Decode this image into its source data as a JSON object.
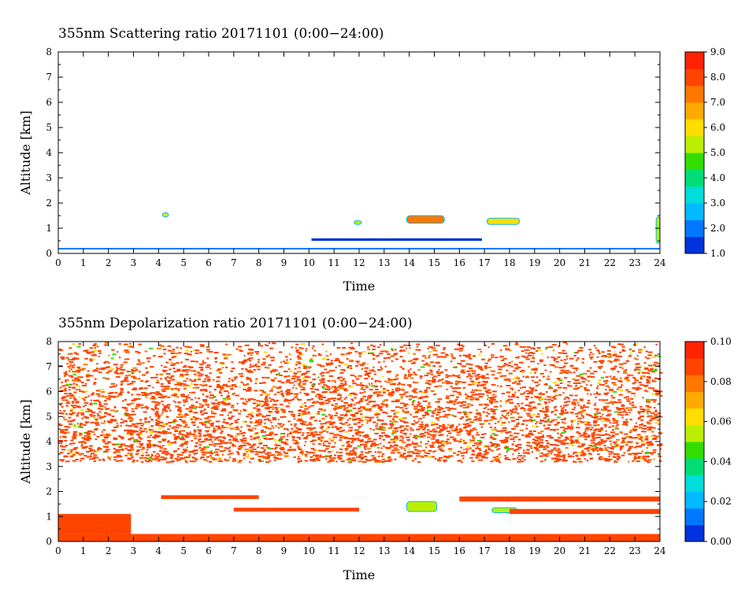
{
  "chart_data": [
    {
      "type": "heatmap",
      "title": "355nm Scattering ratio  20171101 (0:00−24:00)",
      "xlabel": "Time",
      "ylabel": "Altitude [km]",
      "xlim": [
        0,
        24
      ],
      "ylim": [
        0,
        8
      ],
      "x_ticks": [
        "0",
        "1",
        "2",
        "3",
        "4",
        "5",
        "6",
        "7",
        "8",
        "9",
        "10",
        "11",
        "12",
        "13",
        "14",
        "15",
        "16",
        "17",
        "18",
        "19",
        "20",
        "21",
        "22",
        "23",
        "24"
      ],
      "y_ticks": [
        "0",
        "1",
        "2",
        "3",
        "4",
        "5",
        "6",
        "7",
        "8"
      ],
      "colorbar": {
        "range": [
          1.0,
          9.0
        ],
        "tick_labels": [
          "1.0",
          "2.0",
          "3.0",
          "4.0",
          "5.0",
          "6.0",
          "7.0",
          "8.0",
          "9.0"
        ],
        "colors": [
          "#0033dd",
          "#0077ff",
          "#00bbff",
          "#00dddd",
          "#00dd77",
          "#33dd00",
          "#bbee00",
          "#ffdd00",
          "#ffaa00",
          "#ff7700",
          "#ff4400",
          "#ff2200"
        ]
      },
      "features": [
        {
          "kind": "layer",
          "time": [
            0,
            24
          ],
          "altitude": [
            0.18,
            0.22
          ],
          "value": 2.0
        },
        {
          "kind": "layer",
          "time": [
            10.1,
            13.0
          ],
          "altitude": [
            0.5,
            0.6
          ],
          "value": 1.5
        },
        {
          "kind": "layer",
          "time": [
            13.0,
            16.9
          ],
          "altitude": [
            0.5,
            0.6
          ],
          "value": 1.5
        },
        {
          "kind": "cloud",
          "time": [
            4.15,
            4.4
          ],
          "altitude": [
            1.45,
            1.62
          ],
          "value": 6.0
        },
        {
          "kind": "cloud",
          "time": [
            11.8,
            12.1
          ],
          "altitude": [
            1.15,
            1.3
          ],
          "value": 5.0
        },
        {
          "kind": "cloud",
          "time": [
            13.9,
            15.4
          ],
          "altitude": [
            1.2,
            1.5
          ],
          "value": 7.0
        },
        {
          "kind": "cloud",
          "time": [
            17.1,
            18.4
          ],
          "altitude": [
            1.15,
            1.4
          ],
          "value": 6.0
        },
        {
          "kind": "cloud",
          "time": [
            23.85,
            24
          ],
          "altitude": [
            0.4,
            1.45
          ],
          "value": 5.0
        }
      ]
    },
    {
      "type": "heatmap",
      "title": "355nm Depolarization ratio  20171101 (0:00−24:00)",
      "xlabel": "Time",
      "ylabel": "Altitude [km]",
      "xlim": [
        0,
        24
      ],
      "ylim": [
        0,
        8
      ],
      "x_ticks": [
        "0",
        "1",
        "2",
        "3",
        "4",
        "5",
        "6",
        "7",
        "8",
        "9",
        "10",
        "11",
        "12",
        "13",
        "14",
        "15",
        "16",
        "17",
        "18",
        "19",
        "20",
        "21",
        "22",
        "23",
        "24"
      ],
      "y_ticks": [
        "0",
        "1",
        "2",
        "3",
        "4",
        "5",
        "6",
        "7",
        "8"
      ],
      "colorbar": {
        "range": [
          0.0,
          0.1
        ],
        "tick_labels": [
          "0.00",
          "0.02",
          "0.04",
          "0.06",
          "0.08",
          "0.10"
        ],
        "colors": [
          "#0033dd",
          "#0077ff",
          "#00bbff",
          "#00dddd",
          "#00dd77",
          "#33dd00",
          "#bbee00",
          "#ffdd00",
          "#ffaa00",
          "#ff7700",
          "#ff4400",
          "#ff2200"
        ]
      },
      "features": [
        {
          "kind": "noise",
          "time": [
            0,
            24
          ],
          "altitude": [
            3.2,
            8.0
          ],
          "value": 0.1
        },
        {
          "kind": "layer",
          "time": [
            0,
            2.9
          ],
          "altitude": [
            0.3,
            1.1
          ],
          "value": 0.09
        },
        {
          "kind": "layer",
          "time": [
            0,
            24
          ],
          "altitude": [
            0.0,
            0.3
          ],
          "value": 0.09
        },
        {
          "kind": "layer",
          "time": [
            4.1,
            8.0
          ],
          "altitude": [
            1.7,
            1.85
          ],
          "value": 0.09
        },
        {
          "kind": "layer",
          "time": [
            7.0,
            12.0
          ],
          "altitude": [
            1.2,
            1.35
          ],
          "value": 0.09
        },
        {
          "kind": "cloud",
          "time": [
            13.9,
            15.1
          ],
          "altitude": [
            1.2,
            1.6
          ],
          "value": 0.05
        },
        {
          "kind": "cloud",
          "time": [
            17.3,
            18.3
          ],
          "altitude": [
            1.15,
            1.35
          ],
          "value": 0.05
        },
        {
          "kind": "layer",
          "time": [
            18.0,
            24
          ],
          "altitude": [
            1.1,
            1.3
          ],
          "value": 0.09
        },
        {
          "kind": "layer",
          "time": [
            16.0,
            24
          ],
          "altitude": [
            1.6,
            1.8
          ],
          "value": 0.09
        }
      ]
    }
  ]
}
